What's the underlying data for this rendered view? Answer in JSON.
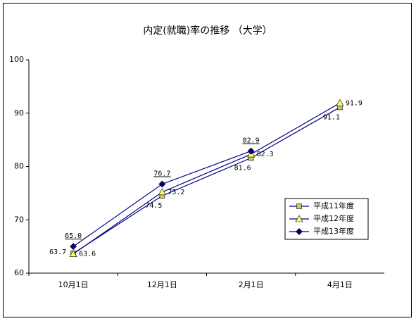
{
  "chart_data": {
    "type": "line",
    "title": "内定(就職)率の推移 （大学）",
    "categories": [
      "10月1日",
      "12月1日",
      "2月1日",
      "4月1日"
    ],
    "series": [
      {
        "name": "平成11年度",
        "color": "#000080",
        "marker": "square",
        "marker_color": "#c8c864",
        "values": [
          63.7,
          74.5,
          81.6,
          91.1
        ],
        "value_labels": [
          "63.7",
          "74.5",
          "81.6",
          "91.1"
        ]
      },
      {
        "name": "平成12年度",
        "color": "#000080",
        "marker": "triangle",
        "marker_color": "#ffff66",
        "values": [
          63.6,
          75.2,
          82.3,
          91.9
        ],
        "value_labels": [
          "63.6",
          "75.2",
          "82.3",
          "91.9"
        ]
      },
      {
        "name": "平成13年度",
        "color": "#000080",
        "marker": "diamond",
        "marker_color": "#000080",
        "values": [
          65.0,
          76.7,
          82.9,
          null
        ],
        "value_labels": [
          "65.0",
          "76.7",
          "82.9",
          null
        ]
      }
    ],
    "ylim": [
      60,
      100
    ],
    "yticks": [
      60,
      70,
      80,
      90,
      100
    ],
    "grid": false,
    "legend": "right"
  }
}
